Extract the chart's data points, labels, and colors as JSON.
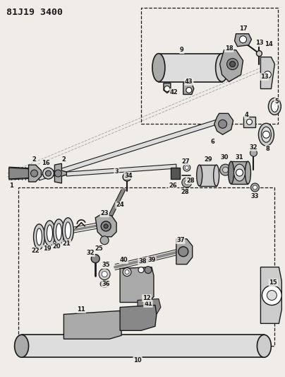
{
  "title": "81J19 3400",
  "bg": "#f0ede8",
  "lc": "#1a1a1a",
  "fig_w": 4.04,
  "fig_h": 5.33,
  "dpi": 100,
  "gray1": "#555555",
  "gray2": "#888888",
  "gray3": "#aaaaaa",
  "gray4": "#cccccc",
  "gray5": "#dddddd",
  "white": "#ffffff",
  "label_fs": 6.0,
  "title_fs": 9.5
}
